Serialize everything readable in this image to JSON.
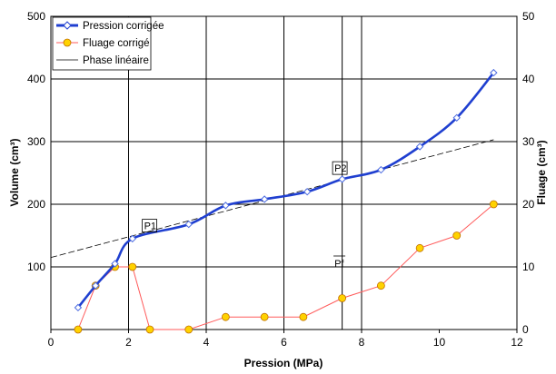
{
  "chart_data": {
    "type": "line",
    "xlabel": "Pression (MPa)",
    "ylabel_left": "Volume (cm³)",
    "ylabel_right": "Fluage (cm³)",
    "xlim": [
      0,
      12
    ],
    "ylim_left": [
      0,
      500
    ],
    "ylim_right": [
      0,
      50
    ],
    "xticks": [
      "0",
      "2",
      "4",
      "6",
      "8",
      "10",
      "12"
    ],
    "yticks_left": [
      "100",
      "200",
      "300",
      "400",
      "500"
    ],
    "yticks_right": [
      "0",
      "10",
      "20",
      "30",
      "40",
      "50"
    ],
    "grid": {
      "horizontal": true,
      "vertical_at": [
        2,
        4,
        6,
        7.5,
        8
      ]
    },
    "legend_position": "top-left",
    "series": [
      {
        "name": "Pression corrigée",
        "axis": "left",
        "color": "#1f3fd0",
        "marker": "open-diamond",
        "x": [
          0.7,
          1.15,
          1.65,
          2.1,
          3.55,
          4.5,
          5.5,
          6.6,
          7.5,
          8.5,
          9.5,
          10.45,
          11.4
        ],
        "y": [
          35,
          70,
          105,
          145,
          168,
          198,
          208,
          220,
          240,
          255,
          292,
          338,
          410
        ]
      },
      {
        "name": "Fluage corrigé",
        "axis": "right",
        "color": "#ff5a5a",
        "marker": "yellow-circle",
        "x": [
          0.7,
          1.15,
          1.65,
          2.1,
          2.55,
          3.55,
          4.5,
          5.5,
          6.5,
          7.5,
          8.5,
          9.5,
          10.45,
          11.4
        ],
        "y": [
          0,
          7,
          10,
          10,
          0,
          0,
          2,
          2,
          2,
          5,
          7,
          13,
          15,
          20
        ]
      },
      {
        "name": "Phase linéaire",
        "axis": "left",
        "color": "#000000",
        "style": "dashed",
        "x": [
          0,
          11.4
        ],
        "y": [
          115,
          303
        ]
      }
    ],
    "annotations": [
      {
        "text": "P1",
        "x": 2.4,
        "y": 160,
        "boxed": true
      },
      {
        "text": "P2",
        "x": 7.3,
        "y": 252,
        "boxed": true
      },
      {
        "text": "Pf",
        "x": 7.3,
        "y": 100,
        "boxed": false
      }
    ]
  }
}
